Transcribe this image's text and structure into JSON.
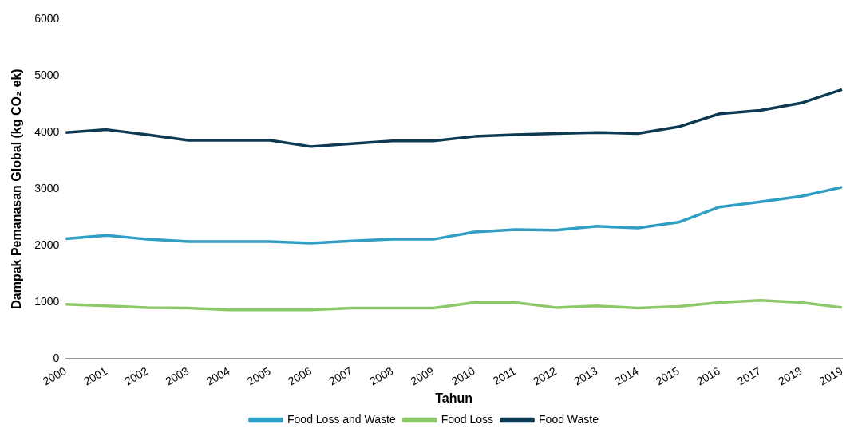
{
  "chart_data": {
    "type": "line",
    "xlabel": "Tahun",
    "ylabel": "Dampak Pemanasan Global (kg CO₂ ek)",
    "categories": [
      "2000",
      "2001",
      "2002",
      "2003",
      "2004",
      "2005",
      "2006",
      "2007",
      "2008",
      "2009",
      "2010",
      "2011",
      "2012",
      "2013",
      "2014",
      "2015",
      "2016",
      "2017",
      "2018",
      "2019"
    ],
    "series": [
      {
        "name": "Food Loss and Waste",
        "color": "#2e9ec4",
        "values": [
          2120,
          2180,
          2110,
          2070,
          2070,
          2070,
          2040,
          2080,
          2110,
          2110,
          2240,
          2280,
          2270,
          2340,
          2310,
          2410,
          2680,
          2770,
          2870,
          3030
        ]
      },
      {
        "name": "Food Loss",
        "color": "#8dc96b",
        "values": [
          960,
          930,
          900,
          890,
          860,
          860,
          860,
          890,
          890,
          890,
          990,
          990,
          900,
          930,
          890,
          920,
          990,
          1030,
          990,
          900
        ]
      },
      {
        "name": "Food Waste",
        "color": "#0d3a52",
        "values": [
          4000,
          4050,
          3960,
          3860,
          3860,
          3860,
          3750,
          3800,
          3850,
          3850,
          3930,
          3960,
          3980,
          4000,
          3980,
          4100,
          4330,
          4390,
          4520,
          4760
        ]
      }
    ],
    "ylim": [
      0,
      6000
    ],
    "yticks": [
      0,
      1000,
      2000,
      3000,
      4000,
      5000,
      6000
    ],
    "grid": false,
    "legend": "bottom",
    "marker": "none",
    "line_style": "solid"
  }
}
